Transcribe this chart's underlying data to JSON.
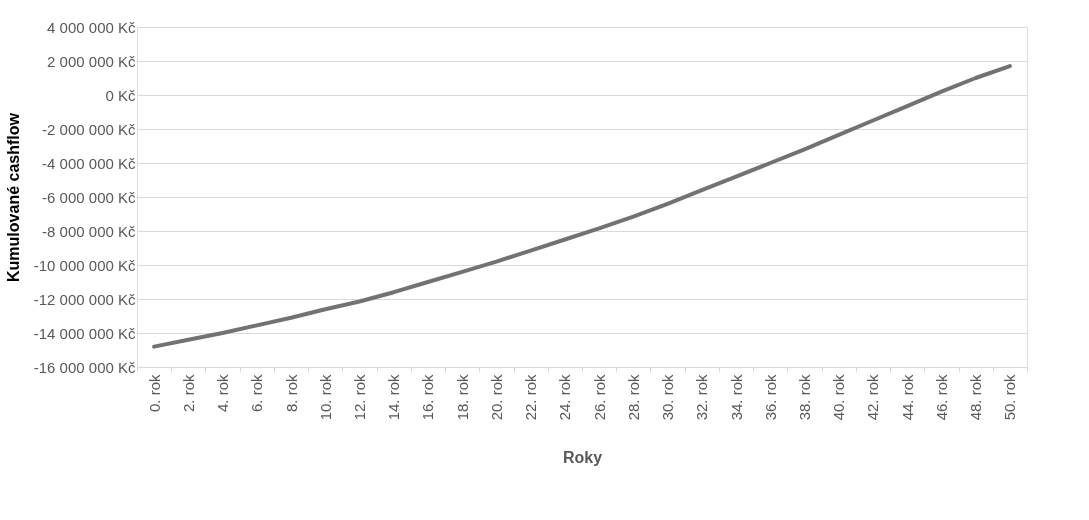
{
  "chart_data": {
    "type": "line",
    "xlabel": "Roky",
    "ylabel": "Kumulované cashflow",
    "categories": [
      "0. rok",
      "2. rok",
      "4. rok",
      "6. rok",
      "8. rok",
      "10. rok",
      "12. rok",
      "14. rok",
      "16. rok",
      "18. rok",
      "20. rok",
      "22. rok",
      "24. rok",
      "26. rok",
      "28. rok",
      "30. rok",
      "32. rok",
      "34. rok",
      "36. rok",
      "38. rok",
      "40. rok",
      "42. rok",
      "44. rok",
      "46. rok",
      "48. rok",
      "50. rok"
    ],
    "series": [
      {
        "color": "#767171",
        "values": [
          -14800000,
          -14400000,
          -14000000,
          -13550000,
          -13100000,
          -12600000,
          -12150000,
          -11600000,
          -11000000,
          -10400000,
          -9800000,
          -9150000,
          -8500000,
          -7850000,
          -7150000,
          -6400000,
          -5600000,
          -4800000,
          -4000000,
          -3200000,
          -2350000,
          -1500000,
          -650000,
          200000,
          1000000,
          1700000
        ]
      }
    ],
    "ylim": [
      -16000000,
      4000000
    ],
    "yticks": [
      {
        "value": -16000000,
        "label": "-16 000 000 Kč"
      },
      {
        "value": -14000000,
        "label": "-14 000 000 Kč"
      },
      {
        "value": -12000000,
        "label": "-12 000 000 Kč"
      },
      {
        "value": -10000000,
        "label": "-10 000 000 Kč"
      },
      {
        "value": -8000000,
        "label": "-8 000 000 Kč"
      },
      {
        "value": -6000000,
        "label": "-6 000 000 Kč"
      },
      {
        "value": -4000000,
        "label": "-4 000 000 Kč"
      },
      {
        "value": -2000000,
        "label": "-2 000 000 Kč"
      },
      {
        "value": 0,
        "label": "0 Kč"
      },
      {
        "value": 2000000,
        "label": "2 000 000 Kč"
      },
      {
        "value": 4000000,
        "label": "4 000 000 Kč"
      }
    ],
    "grid": "y",
    "marker": "none",
    "line_style": "solid"
  }
}
